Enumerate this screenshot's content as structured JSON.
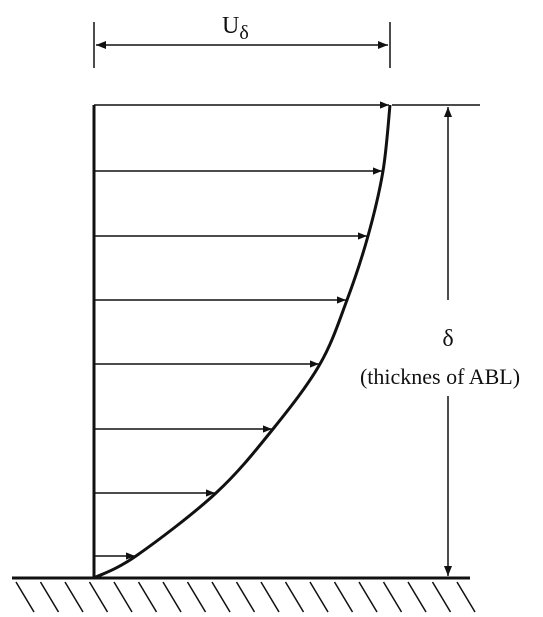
{
  "labels": {
    "velocity": {
      "main": "U",
      "subscript": "δ"
    },
    "thickness_symbol": "δ",
    "thickness_caption": "(thicknes of ABL)"
  }
}
